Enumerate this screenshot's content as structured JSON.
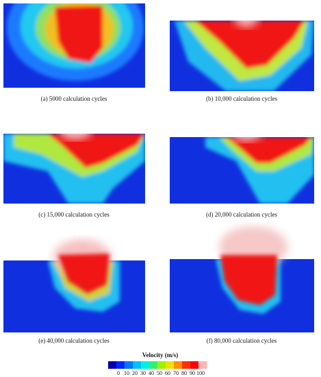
{
  "panels": [
    {
      "caption": "(a) 5000 calculation cycles"
    },
    {
      "caption": "(b) 10,000 calculation cycles"
    },
    {
      "caption": "(c) 15,000 calculation cycles"
    },
    {
      "caption": "(d) 20,000 calculation cycles"
    },
    {
      "caption": "(e) 40,000 calculation cycles"
    },
    {
      "caption": "(f) 80,000 calculation cycles"
    }
  ],
  "colorbar": {
    "title": "Velocity (m/s)",
    "ticks": [
      0,
      10,
      20,
      30,
      40,
      50,
      60,
      70,
      80,
      90,
      100
    ]
  }
}
